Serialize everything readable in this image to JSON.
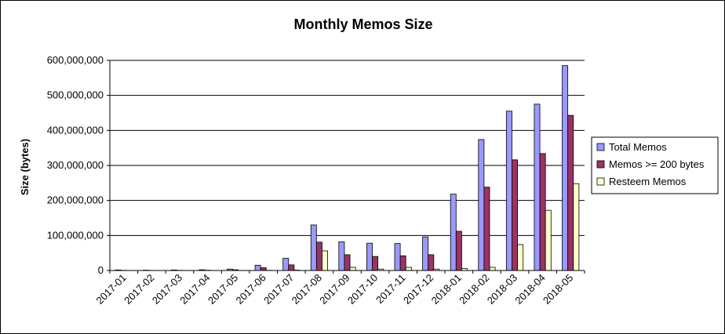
{
  "chart_data": {
    "type": "bar",
    "title": "Monthly Memos Size",
    "xlabel": "",
    "ylabel": "Size (bytes)",
    "ylim": [
      0,
      600000000
    ],
    "yticks": [
      "0",
      "100,000,000",
      "200,000,000",
      "300,000,000",
      "400,000,000",
      "500,000,000",
      "600,000,000"
    ],
    "grid": true,
    "legend_position": "right",
    "categories": [
      "2017-01",
      "2017-02",
      "2017-03",
      "2017-04",
      "2017-05",
      "2017-06",
      "2017-07",
      "2017-08",
      "2017-09",
      "2017-10",
      "2017-11",
      "2017-12",
      "2018-01",
      "2018-02",
      "2018-03",
      "2018-04",
      "2018-05"
    ],
    "series": [
      {
        "name": "Total Memos",
        "color": "#9999ff",
        "values": [
          1500000,
          1000000,
          1500000,
          2000000,
          4000000,
          15000000,
          35000000,
          130000000,
          82000000,
          78000000,
          77000000,
          96000000,
          218000000,
          374000000,
          455000000,
          475000000,
          585000000
        ]
      },
      {
        "name": "Memos >= 200 bytes",
        "color": "#993366",
        "values": [
          500000,
          300000,
          500000,
          800000,
          2000000,
          8000000,
          16000000,
          81000000,
          45000000,
          40000000,
          42000000,
          45000000,
          112000000,
          238000000,
          316000000,
          334000000,
          443000000
        ]
      },
      {
        "name": "Resteem Memos",
        "color": "#ffffcc",
        "values": [
          0,
          0,
          0,
          0,
          0,
          500000,
          1000000,
          56000000,
          9000000,
          4000000,
          9000000,
          4000000,
          6000000,
          9000000,
          74000000,
          172000000,
          248000000
        ]
      }
    ]
  }
}
